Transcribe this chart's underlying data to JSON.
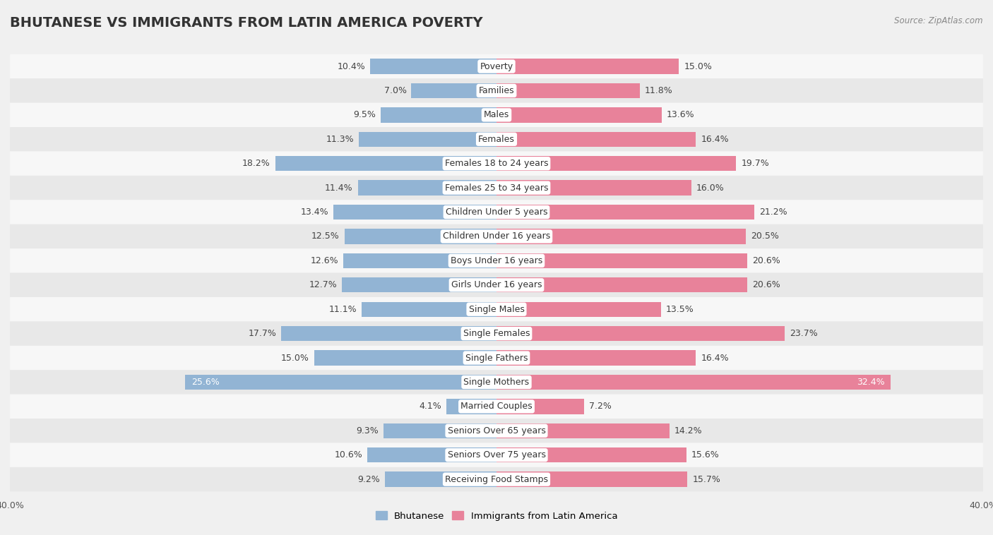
{
  "title": "BHUTANESE VS IMMIGRANTS FROM LATIN AMERICA POVERTY",
  "source": "Source: ZipAtlas.com",
  "categories": [
    "Poverty",
    "Families",
    "Males",
    "Females",
    "Females 18 to 24 years",
    "Females 25 to 34 years",
    "Children Under 5 years",
    "Children Under 16 years",
    "Boys Under 16 years",
    "Girls Under 16 years",
    "Single Males",
    "Single Females",
    "Single Fathers",
    "Single Mothers",
    "Married Couples",
    "Seniors Over 65 years",
    "Seniors Over 75 years",
    "Receiving Food Stamps"
  ],
  "bhutanese": [
    10.4,
    7.0,
    9.5,
    11.3,
    18.2,
    11.4,
    13.4,
    12.5,
    12.6,
    12.7,
    11.1,
    17.7,
    15.0,
    25.6,
    4.1,
    9.3,
    10.6,
    9.2
  ],
  "latin_america": [
    15.0,
    11.8,
    13.6,
    16.4,
    19.7,
    16.0,
    21.2,
    20.5,
    20.6,
    20.6,
    13.5,
    23.7,
    16.4,
    32.4,
    7.2,
    14.2,
    15.6,
    15.7
  ],
  "blue_color": "#92b4d4",
  "pink_color": "#e8829a",
  "background_color": "#f0f0f0",
  "row_color_light": "#f7f7f7",
  "row_color_dark": "#e8e8e8",
  "axis_limit": 40.0,
  "bar_height": 0.62,
  "title_fontsize": 14,
  "label_fontsize": 9,
  "value_fontsize": 9,
  "legend_label_blue": "Bhutanese",
  "legend_label_pink": "Immigrants from Latin America"
}
